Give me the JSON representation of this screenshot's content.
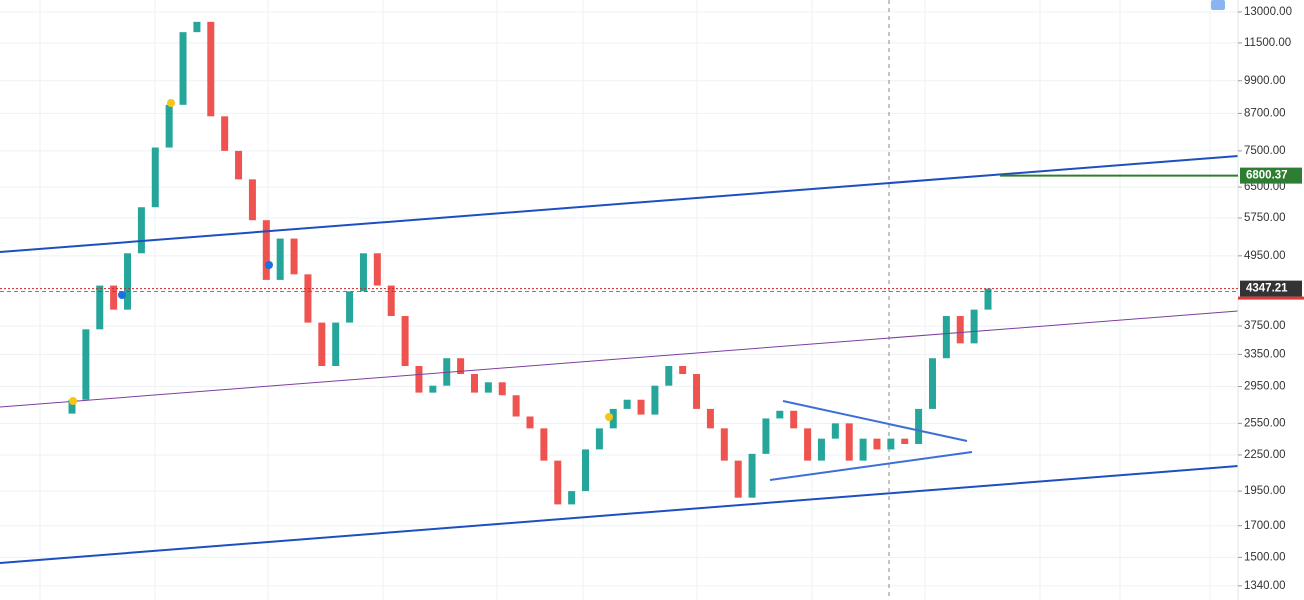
{
  "chart_data": {
    "type": "candlestick",
    "log_scale": true,
    "grid": true,
    "up_color": "#26a69a",
    "down_color": "#ef5350",
    "ylim": [
      1267,
      13630
    ],
    "yticks": [
      {
        "value": 13000,
        "label": "13000.00"
      },
      {
        "value": 11500,
        "label": "11500.00"
      },
      {
        "value": 9900,
        "label": "9900.00"
      },
      {
        "value": 8700,
        "label": "8700.00"
      },
      {
        "value": 7500,
        "label": "7500.00"
      },
      {
        "value": 6500,
        "label": "6500.00"
      },
      {
        "value": 5750,
        "label": "5750.00"
      },
      {
        "value": 4950,
        "label": "4950.00"
      },
      {
        "value": 3750,
        "label": "3750.00"
      },
      {
        "value": 3350,
        "label": "3350.00"
      },
      {
        "value": 2950,
        "label": "2950.00"
      },
      {
        "value": 2550,
        "label": "2550.00"
      },
      {
        "value": 2250,
        "label": "2250.00"
      },
      {
        "value": 1950,
        "label": "1950.00"
      },
      {
        "value": 1700,
        "label": "1700.00"
      },
      {
        "value": 1500,
        "label": "1500.00"
      },
      {
        "value": 1340,
        "label": "1340.00"
      }
    ],
    "open": [
      2650,
      2800,
      3700,
      4400,
      4000,
      5000,
      6000,
      7600,
      9000,
      12000,
      12500,
      8600,
      7500,
      6700,
      5700,
      4500,
      5300,
      4600,
      3800,
      3200,
      3800,
      4300,
      5000,
      4400,
      3900,
      3200,
      2880,
      2960,
      3300,
      3100,
      2880,
      3000,
      2850,
      2620,
      2500,
      2200,
      1850,
      1950,
      2300,
      2500,
      2700,
      2800,
      2640,
      2960,
      3200,
      3100,
      2700,
      2500,
      2200,
      1900,
      2260,
      2600,
      2680,
      2500,
      2200,
      2400,
      2550,
      2200,
      2400,
      2300,
      2400,
      2350,
      2700,
      3300,
      3900,
      3500,
      4000
    ],
    "close": [
      2800,
      3700,
      4400,
      4000,
      5000,
      6000,
      7600,
      9000,
      12000,
      12500,
      8600,
      7500,
      6700,
      5700,
      4500,
      5300,
      4600,
      3800,
      3200,
      3800,
      4300,
      5000,
      4400,
      3900,
      3200,
      2880,
      2960,
      3300,
      3100,
      2880,
      3000,
      2850,
      2620,
      2500,
      2200,
      1850,
      1950,
      2300,
      2500,
      2700,
      2800,
      2640,
      2960,
      3200,
      3100,
      2700,
      2500,
      2200,
      1900,
      2260,
      2600,
      2680,
      2500,
      2200,
      2400,
      2550,
      2200,
      2400,
      2300,
      2400,
      2350,
      2700,
      3300,
      3900,
      3500,
      4000,
      4347.21
    ],
    "price_lines": [
      {
        "value": 6800.37,
        "color": "#2e7d32"
      },
      {
        "value": 4347.21,
        "color": "#333333"
      }
    ]
  }
}
